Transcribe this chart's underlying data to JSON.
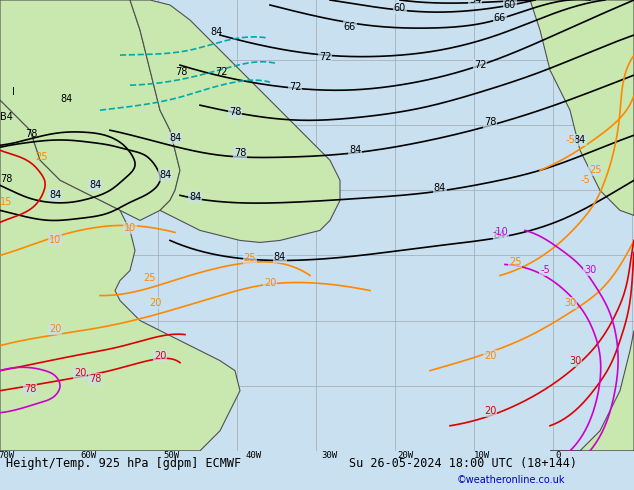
{
  "title_left": "Height/Temp. 925 hPa [gdpm] ECMWF",
  "title_right": "Su 26-05-2024 18:00 UTC (18+144)",
  "watermark": "©weatheronline.co.uk",
  "bg_color": "#c8e0f0",
  "land_color": "#c8e8b0",
  "grid_color": "#a0a8b0",
  "border_color": "#404040",
  "figsize": [
    6.34,
    4.9
  ],
  "dpi": 100,
  "title_fontsize": 8.5,
  "watermark_color": "#0000cc",
  "watermark_fontsize": 7
}
